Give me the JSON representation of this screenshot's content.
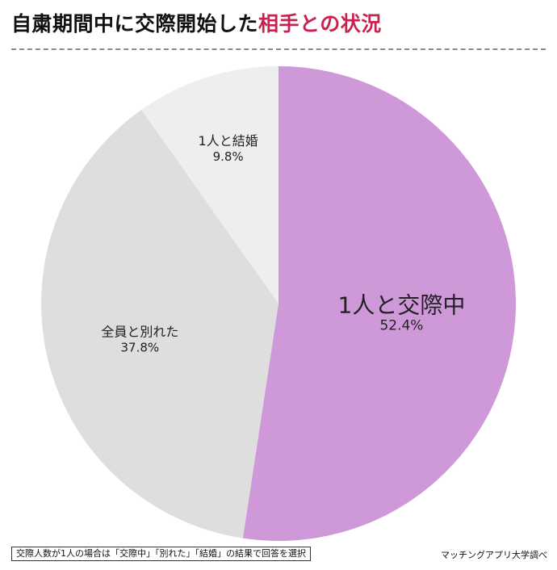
{
  "header": {
    "title_main": "自粛期間中に交際開始した",
    "title_accent": "相手との状況"
  },
  "chart_data": {
    "type": "pie",
    "categories": [
      "1人と交際中",
      "全員と別れた",
      "1人と結婚"
    ],
    "values": [
      52.4,
      37.8,
      9.8
    ],
    "value_labels": [
      "52.4%",
      "37.8%",
      "9.8%"
    ],
    "colors": [
      "#cf98d8",
      "#dedede",
      "#eeeeee"
    ],
    "start": "12 o'clock",
    "direction": "clockwise"
  },
  "footer": {
    "note": "交際人数が1人の場合は「交際中」「別れた」「結婚」の結果で回答を選択",
    "source": "マッチングアプリ大学調べ"
  }
}
